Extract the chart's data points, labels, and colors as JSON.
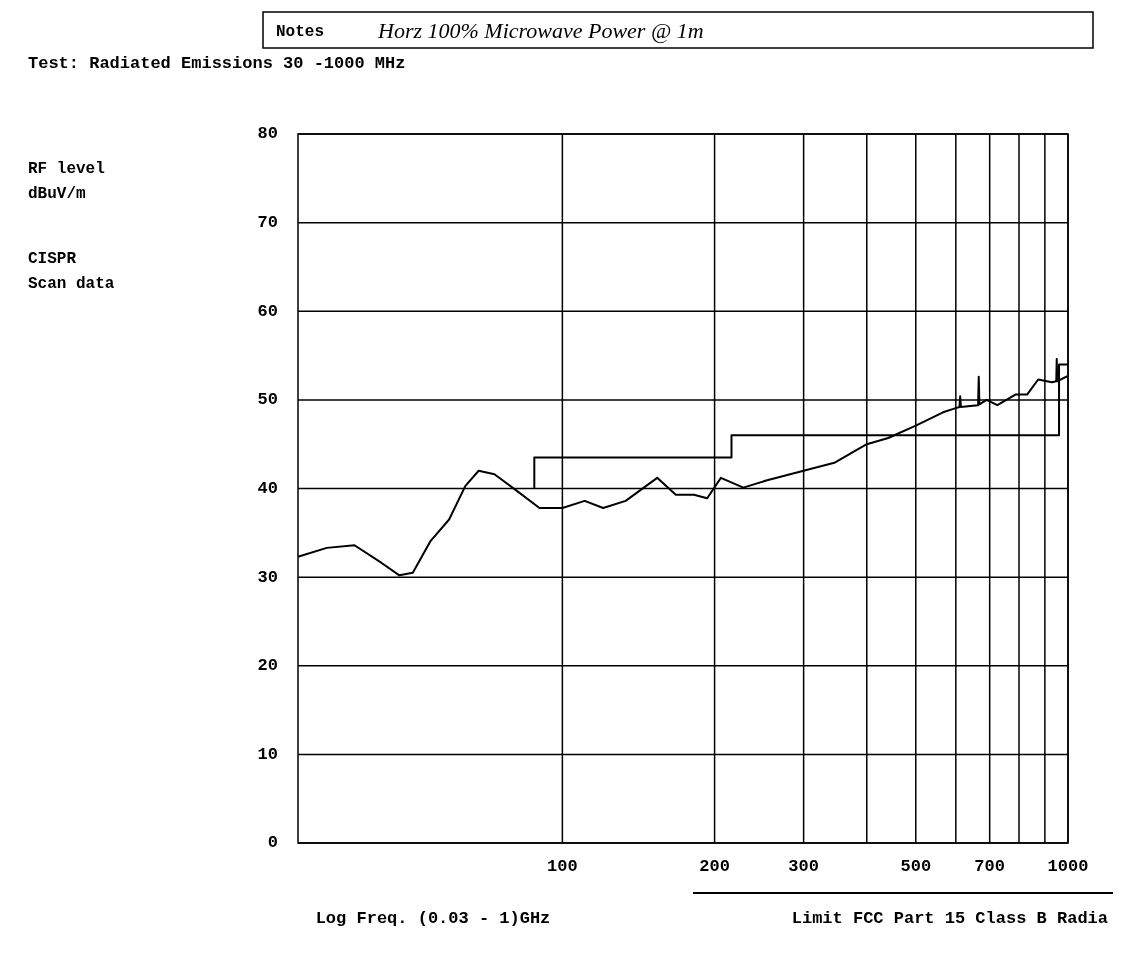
{
  "chart_data": {
    "type": "line",
    "title": "Test: Radiated Emissions 30 -1000 MHz",
    "xlabel": "Log Freq. (0.03 -  1)GHz",
    "annotations": [
      "CISPR\nScan data",
      "Notes",
      "Horz 100% Microwave Power @ 1m",
      "RF level\ndBuV/m"
    ],
    "log": "x",
    "grid": true,
    "legend": "bottom right",
    "line_style": "solid",
    "xlim": [
      30,
      1000
    ],
    "xticks": [
      100,
      200,
      300,
      {
        "value": 400,
        "label": null
      },
      500,
      {
        "value": 600,
        "label": null
      },
      700,
      {
        "value": 800,
        "label": null
      },
      {
        "value": 900,
        "label": null
      },
      1000
    ],
    "ylim": [
      0,
      80
    ],
    "yticks": [
      0,
      10,
      20,
      30,
      40,
      50,
      60,
      70,
      80
    ],
    "series": [
      {
        "color": "#000000",
        "x": [
          30,
          34.2,
          38.8,
          43.9,
          47.6,
          50.6,
          54.9,
          59.7,
          64.3,
          68.3,
          73.4,
          81.4,
          90.1,
          100,
          110.7,
          120.4,
          133.4,
          154,
          167.6,
          182,
          193.4,
          205.8,
          228,
          253,
          300,
          345,
          400,
          441,
          500,
          566,
          602,
          610,
          612,
          614,
          641,
          664,
          666,
          668,
          690,
          725,
          787,
          830,
          873,
          929,
          948,
          950,
          952,
          1000
        ],
        "values": [
          32.3,
          33.3,
          33.6,
          31.6,
          30.2,
          30.5,
          34.1,
          36.5,
          40.3,
          42.0,
          41.6,
          39.7,
          37.8,
          37.8,
          38.6,
          37.8,
          38.6,
          41.2,
          39.3,
          39.3,
          38.9,
          41.2,
          40.1,
          40.9,
          42.0,
          42.9,
          45.0,
          45.7,
          47.1,
          48.6,
          49.1,
          49.2,
          50.4,
          49.2,
          49.3,
          49.4,
          52.6,
          49.5,
          50.0,
          49.4,
          50.6,
          50.6,
          52.3,
          52.0,
          52.1,
          54.6,
          52.1,
          52.7
        ]
      },
      {
        "name": "Limit FCC Part 15 Class B Radia",
        "color": "#000000",
        "x": [
          88,
          88,
          216,
          216,
          960,
          960,
          1000
        ],
        "values": [
          40,
          43.5,
          43.5,
          46,
          46,
          54,
          54
        ]
      }
    ]
  }
}
